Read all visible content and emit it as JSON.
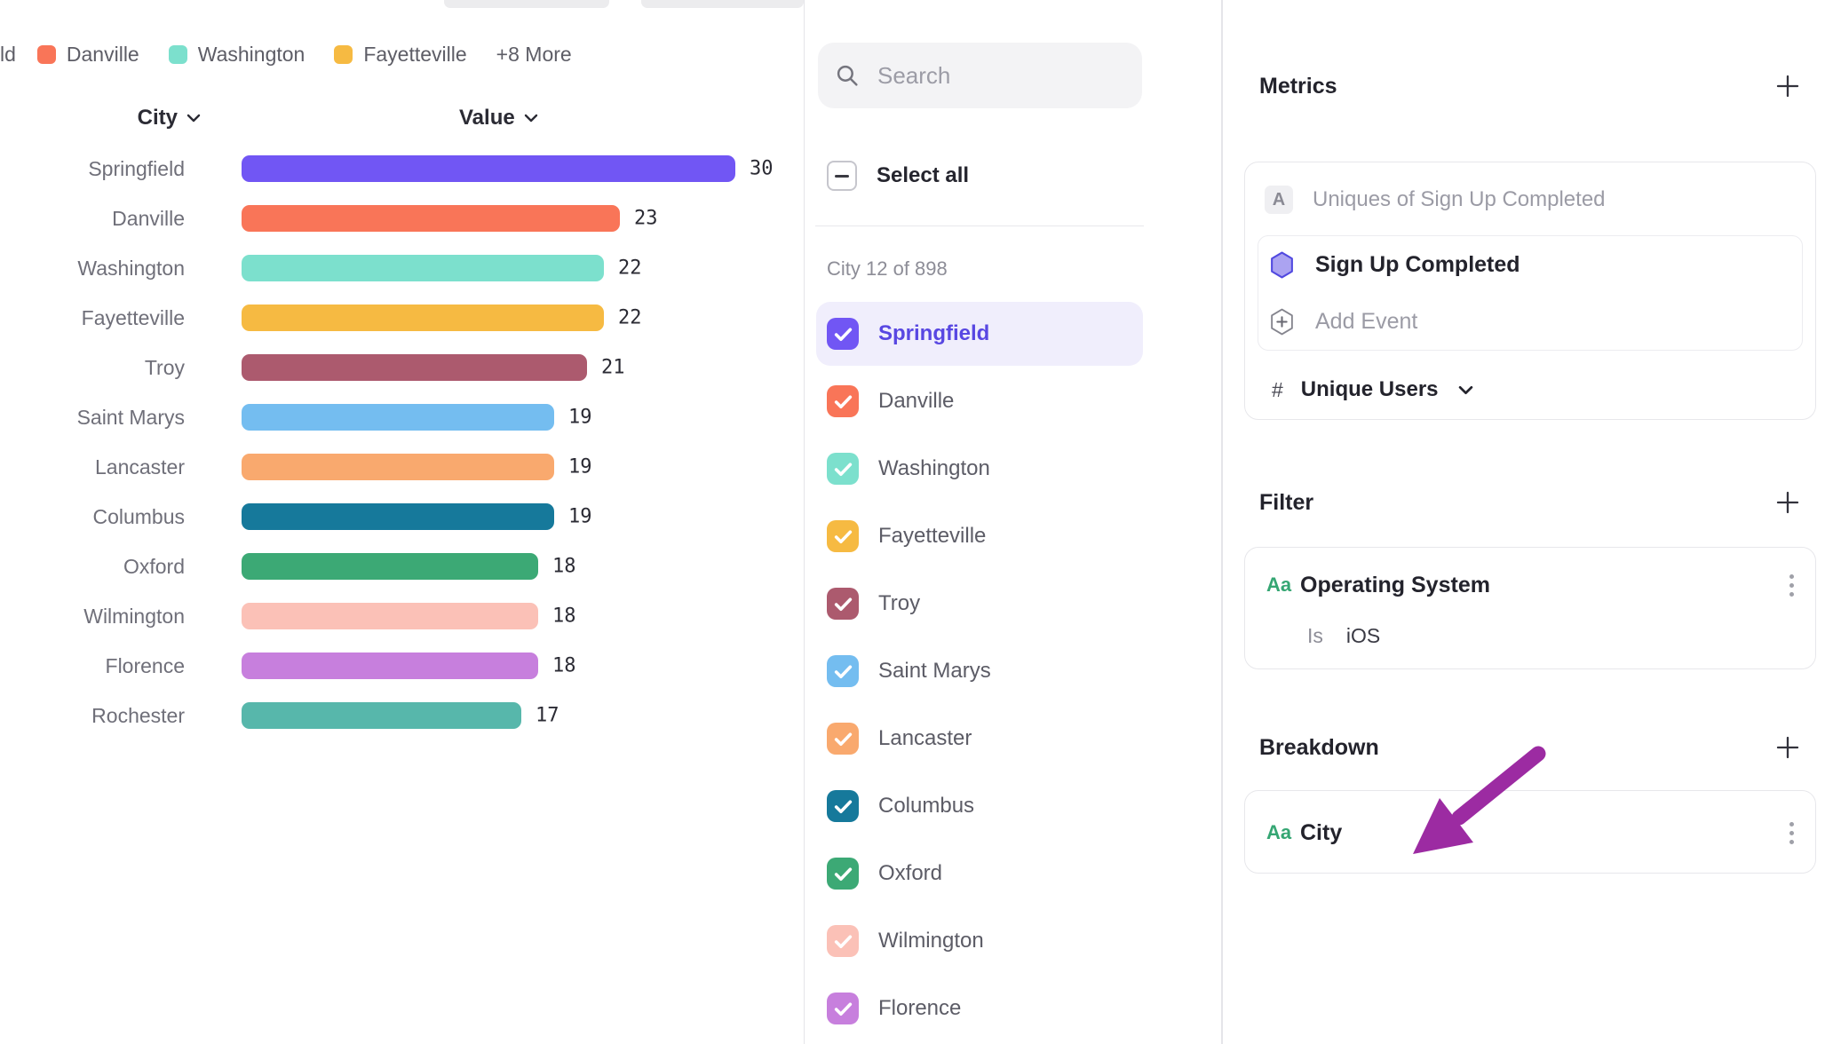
{
  "top_bar": {
    "clipped_buttons": [
      "clipped-toolbar-button-1",
      "clipped-toolbar-button-2",
      "clipped-toolbar-button-3"
    ],
    "segmented_control_segments": 3
  },
  "legend": {
    "clipped_label": "ld",
    "items": [
      {
        "label": "Danville",
        "color": "#F97558"
      },
      {
        "label": "Washington",
        "color": "#7CE0CD"
      },
      {
        "label": "Fayetteville",
        "color": "#F6BA42"
      }
    ],
    "more_label": "+8 More"
  },
  "chart_data": {
    "type": "bar",
    "orientation": "horizontal",
    "column_headers": {
      "category": "City",
      "value": "Value"
    },
    "categories": [
      "Springfield",
      "Danville",
      "Washington",
      "Fayetteville",
      "Troy",
      "Saint Marys",
      "Lancaster",
      "Columbus",
      "Oxford",
      "Wilmington",
      "Florence",
      "Rochester"
    ],
    "values": [
      30,
      23,
      22,
      22,
      21,
      19,
      19,
      19,
      18,
      18,
      18,
      17
    ],
    "colors": [
      "#7156F4",
      "#F97558",
      "#7CE0CD",
      "#F6BA42",
      "#AC5A6E",
      "#74BDF0",
      "#F9A96E",
      "#16799B",
      "#3CA975",
      "#FBC1B7",
      "#C77FDD",
      "#57B7AB"
    ],
    "xlim": [
      0,
      30
    ],
    "grid": false,
    "value_labels": true,
    "legend_position": "top"
  },
  "city_selector": {
    "search_placeholder": "Search",
    "select_all_label": "Select all",
    "select_all_state": "indeterminate",
    "count_label": "City 12 of 898",
    "items": [
      {
        "label": "Springfield",
        "color": "#7156F4",
        "checked": true,
        "selected": true
      },
      {
        "label": "Danville",
        "color": "#F97558",
        "checked": true,
        "selected": false
      },
      {
        "label": "Washington",
        "color": "#7CE0CD",
        "checked": true,
        "selected": false
      },
      {
        "label": "Fayetteville",
        "color": "#F6BA42",
        "checked": true,
        "selected": false
      },
      {
        "label": "Troy",
        "color": "#AC5A6E",
        "checked": true,
        "selected": false
      },
      {
        "label": "Saint Marys",
        "color": "#74BDF0",
        "checked": true,
        "selected": false
      },
      {
        "label": "Lancaster",
        "color": "#F9A96E",
        "checked": true,
        "selected": false
      },
      {
        "label": "Columbus",
        "color": "#16799B",
        "checked": true,
        "selected": false
      },
      {
        "label": "Oxford",
        "color": "#3CA975",
        "checked": true,
        "selected": false
      },
      {
        "label": "Wilmington",
        "color": "#FBC1B7",
        "checked": true,
        "selected": false
      },
      {
        "label": "Florence",
        "color": "#C77FDD",
        "checked": true,
        "selected": false
      }
    ]
  },
  "inspector": {
    "metrics": {
      "title": "Metrics",
      "badge": "A",
      "metric_name": "Uniques of Sign Up Completed",
      "event": {
        "name": "Sign Up Completed",
        "icon": "hexagon-icon"
      },
      "add_event_label": "Add Event",
      "measure": {
        "prefix": "#",
        "label": "Unique Users"
      }
    },
    "filter": {
      "title": "Filter",
      "row": {
        "type_badge": "Aa",
        "property": "Operating System",
        "operator": "Is",
        "value": "iOS"
      }
    },
    "breakdown": {
      "title": "Breakdown",
      "row": {
        "type_badge": "Aa",
        "property": "City"
      },
      "annotation_arrow_color": "#9C2BA2"
    }
  }
}
